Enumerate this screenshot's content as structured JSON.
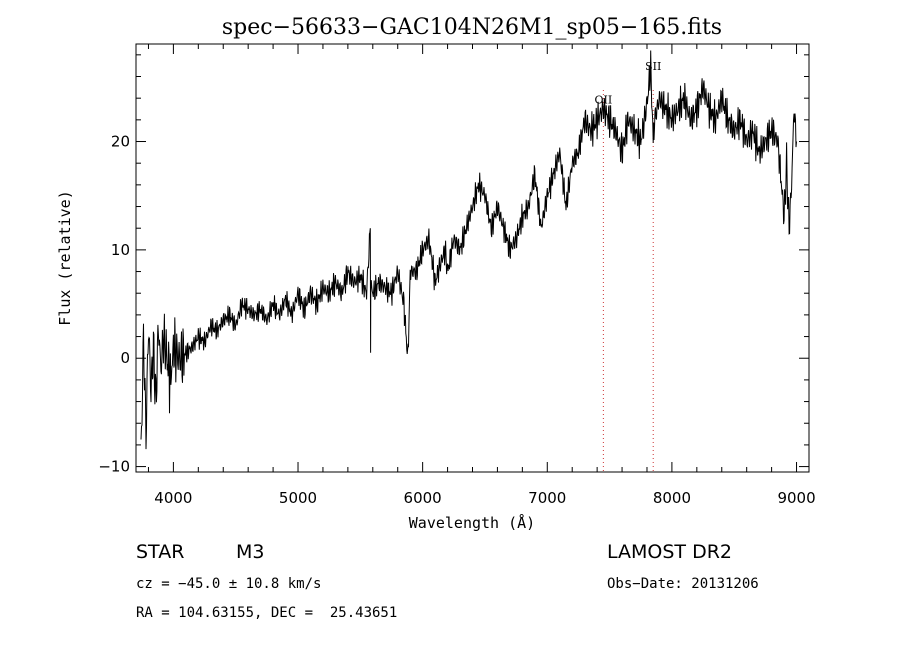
{
  "chart_data": {
    "type": "line",
    "title": "spec−56633−GAC104N26M1_sp05−165.fits",
    "xlabel": "Wavelength (Å)",
    "ylabel": "Flux (relative)",
    "xlim": [
      3700,
      9100
    ],
    "ylim": [
      -10.5,
      29
    ],
    "x_ticks": [
      4000,
      5000,
      6000,
      7000,
      8000,
      9000
    ],
    "y_ticks": [
      -10,
      0,
      10,
      20
    ],
    "y_tick_labels": [
      "−10",
      "0",
      "10",
      "20"
    ],
    "grid": false,
    "series": [
      {
        "x": [
          3740,
          3760,
          3780,
          3800,
          3820,
          3840,
          3860,
          3880,
          3900,
          3920,
          3950,
          3980,
          4000,
          4050,
          4100,
          4150,
          4200,
          4250,
          4300,
          4350,
          4400,
          4450,
          4500,
          4550,
          4600,
          4650,
          4700,
          4750,
          4800,
          4850,
          4900,
          4950,
          5000,
          5050,
          5100,
          5150,
          5200,
          5250,
          5300,
          5350,
          5400,
          5450,
          5500,
          5550,
          5580,
          5582,
          5584,
          5600,
          5650,
          5700,
          5750,
          5800,
          5850,
          5880,
          5890,
          5895,
          5900,
          5950,
          6000,
          6050,
          6100,
          6150,
          6180,
          6200,
          6250,
          6300,
          6350,
          6400,
          6450,
          6500,
          6550,
          6600,
          6650,
          6700,
          6750,
          6800,
          6850,
          6900,
          6950,
          7000,
          7050,
          7100,
          7150,
          7200,
          7250,
          7300,
          7350,
          7400,
          7450,
          7500,
          7550,
          7600,
          7650,
          7700,
          7750,
          7800,
          7830,
          7850,
          7860,
          7900,
          7950,
          8000,
          8050,
          8100,
          8150,
          8200,
          8250,
          8300,
          8350,
          8400,
          8450,
          8500,
          8550,
          8600,
          8650,
          8700,
          8750,
          8800,
          8850,
          8880,
          8900,
          8920,
          8940,
          8960,
          8980,
          9000
        ],
        "y": [
          -9,
          2,
          -7,
          3,
          -3,
          1,
          -4,
          3,
          -1,
          2,
          0,
          -2,
          1,
          0,
          0.5,
          1,
          2,
          1.5,
          3,
          2.5,
          3.5,
          4,
          3,
          5,
          4.5,
          4,
          4.5,
          3.5,
          5,
          4,
          5.5,
          4,
          6,
          4.5,
          6,
          5,
          6.5,
          6,
          7,
          6,
          8,
          7,
          7.5,
          6,
          12,
          0.5,
          7,
          6,
          7,
          6.5,
          6,
          8,
          5,
          0,
          3,
          6,
          8,
          8,
          10,
          11,
          7,
          9,
          10,
          8,
          11,
          10,
          12,
          14,
          16,
          15,
          12,
          14,
          12,
          10,
          11,
          13,
          14,
          17,
          12,
          15,
          17,
          19,
          14,
          18,
          19,
          22,
          21,
          22,
          23,
          22,
          21,
          19,
          22,
          21,
          20,
          23.5,
          27,
          20,
          22,
          24,
          23,
          22,
          23,
          24,
          22,
          23,
          25,
          23,
          22,
          24,
          22,
          21,
          22,
          20,
          21,
          19,
          20,
          21,
          20,
          16,
          13,
          18,
          12,
          16,
          23,
          20
        ]
      }
    ],
    "annotations": [
      {
        "label": "OII",
        "x": 7450
      },
      {
        "label": "SII",
        "x": 7850
      }
    ],
    "info": {
      "object_class": "STAR",
      "subclass": "M3",
      "survey": "LAMOST DR2",
      "cz": "cz = −45.0 ± 10.8 km/s",
      "obs_date": "Obs−Date: 20131206",
      "coords": "RA = 104.63155, DEC =  25.43651"
    }
  }
}
